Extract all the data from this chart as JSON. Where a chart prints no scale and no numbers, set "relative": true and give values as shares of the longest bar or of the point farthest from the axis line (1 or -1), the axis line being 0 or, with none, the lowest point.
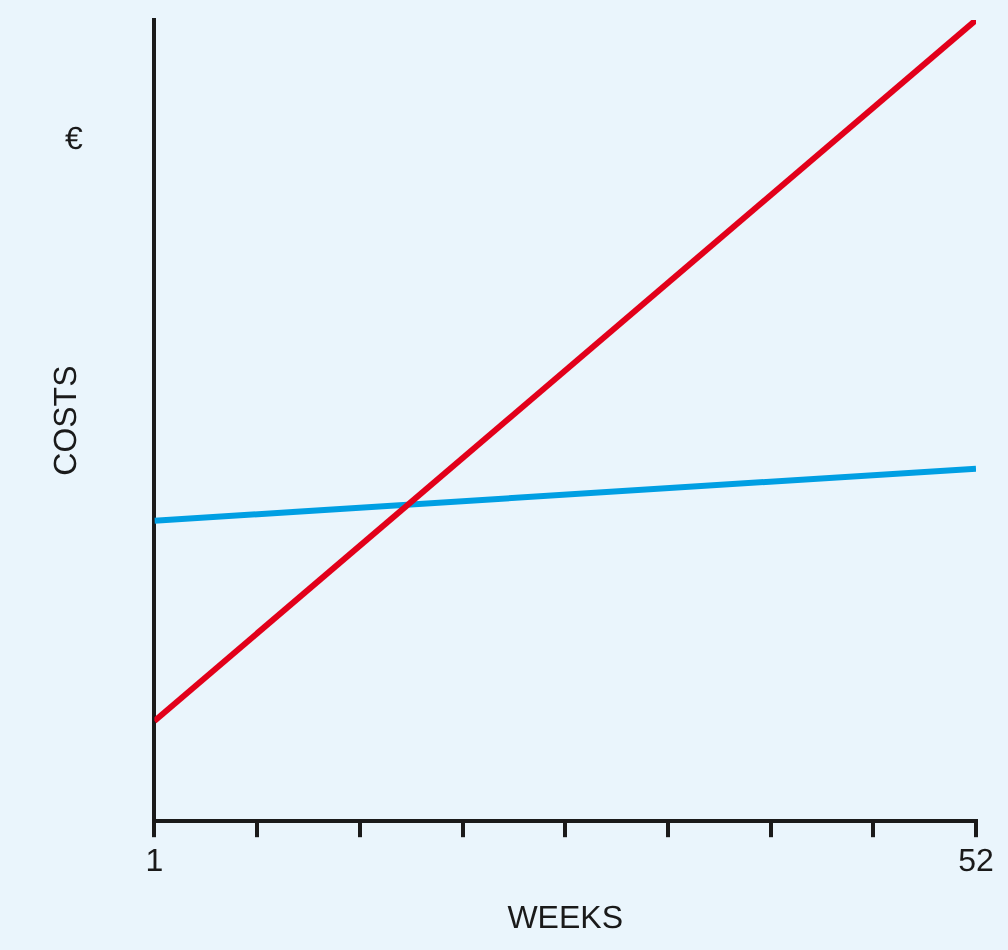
{
  "chart_data": {
    "type": "line",
    "relative": true,
    "xlabel": "WEEKS",
    "ylabel": "COSTS",
    "annotations": [
      "€"
    ],
    "x": [
      1,
      52
    ],
    "xlim": [
      1,
      52
    ],
    "xticks": [
      1,
      {
        "value": 7.375,
        "label": null
      },
      {
        "value": 13.75,
        "label": null
      },
      {
        "value": 20.125,
        "label": null
      },
      {
        "value": 26.5,
        "label": null
      },
      {
        "value": 32.875,
        "label": null
      },
      {
        "value": 39.25,
        "label": null
      },
      {
        "value": 45.625,
        "label": null
      },
      52
    ],
    "series": [
      {
        "color": "#e2001a",
        "values": [
          0.125,
          1
        ]
      },
      {
        "color": "#009fe3",
        "values": [
          0.375,
          0.44
        ]
      }
    ],
    "grid": false,
    "legend": false,
    "marker": "none",
    "line_style": "solid"
  }
}
